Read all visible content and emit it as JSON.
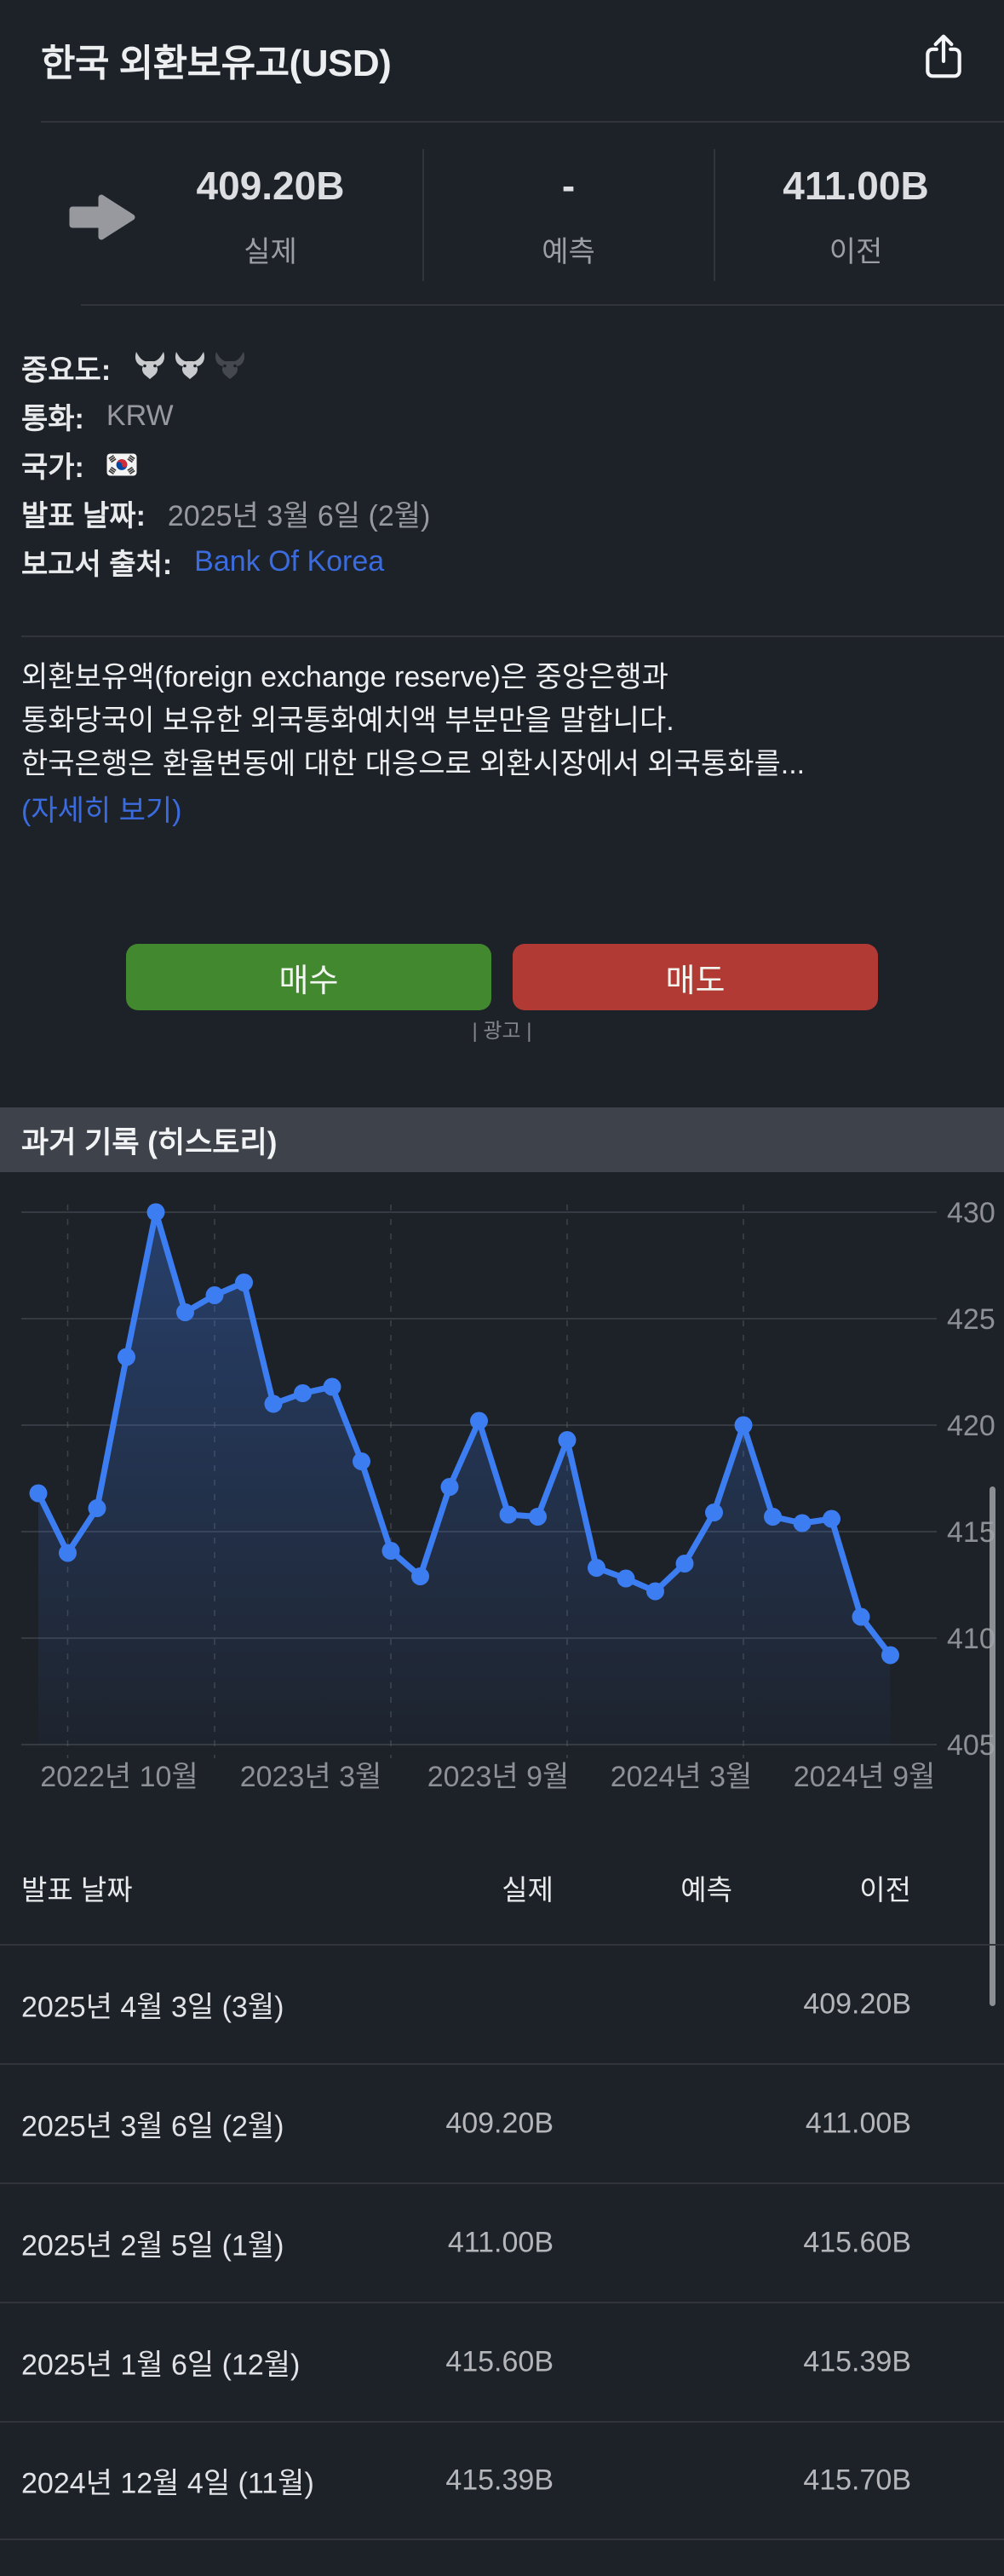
{
  "page": {
    "background": "#1d2128",
    "accent_blue": "#3c7ef2"
  },
  "header": {
    "title": "한국 외환보유고(USD)"
  },
  "stats": {
    "actual": {
      "value": "409.20B",
      "label": "실제"
    },
    "forecast": {
      "value": "-",
      "label": "예측"
    },
    "previous": {
      "value": "411.00B",
      "label": "이전"
    }
  },
  "details": {
    "importance": {
      "label": "중요도:",
      "bulls_active": 2,
      "bulls_total": 3
    },
    "currency": {
      "label": "통화:",
      "value": "KRW"
    },
    "country": {
      "label": "국가:",
      "flag": "south-korea"
    },
    "release_date": {
      "label": "발표 날짜:",
      "value": "2025년 3월 6일 (2월)"
    },
    "source": {
      "label": "보고서 출처:",
      "value": "Bank Of Korea",
      "link_color": "#3b6cdf"
    }
  },
  "description": {
    "lines": [
      "외환보유액(foreign exchange reserve)은 중앙은행과",
      "통화당국이 보유한 외국통화예치액 부분만을 말합니다.",
      "한국은행은 환율변동에 대한 대응으로 외환시장에서 외국통화를..."
    ],
    "more_link": "(자세히 보기)"
  },
  "actions": {
    "buy_label": "매수",
    "buy_color": "#41882f",
    "sell_label": "매도",
    "sell_color": "#b23a34",
    "ad_label": "| 광고 |"
  },
  "history": {
    "section_title": "과거 기록 (히스토리)"
  },
  "chart_data": {
    "type": "line",
    "title": "한국 외환보유고(USD) 과거 기록",
    "x": [
      "2022-09",
      "2022-10",
      "2022-11",
      "2022-12",
      "2023-01",
      "2023-02",
      "2023-03",
      "2023-04",
      "2023-05",
      "2023-06",
      "2023-07",
      "2023-08",
      "2023-09",
      "2023-10",
      "2023-11",
      "2023-12",
      "2024-01",
      "2024-02",
      "2024-03",
      "2024-04",
      "2024-05",
      "2024-06",
      "2024-07",
      "2024-08",
      "2024-09",
      "2024-10",
      "2024-11",
      "2024-12",
      "2025-01",
      "2025-02"
    ],
    "values": [
      416.8,
      414.0,
      416.1,
      423.2,
      430.0,
      425.3,
      426.1,
      426.7,
      421.0,
      421.5,
      421.8,
      418.3,
      414.1,
      412.9,
      417.1,
      420.2,
      415.8,
      415.7,
      419.3,
      413.3,
      412.8,
      412.2,
      413.5,
      415.9,
      420.0,
      415.7,
      415.4,
      415.6,
      411.0,
      409.2
    ],
    "ylim": [
      405,
      430
    ],
    "yticks": [
      430,
      425,
      420,
      415,
      410,
      405
    ],
    "xtick_labels": [
      "2022년 10월",
      "2023년 3월",
      "2023년 9월",
      "2024년 3월",
      "2024년 9월"
    ],
    "xtick_indices": [
      1,
      6,
      12,
      18,
      24
    ],
    "grid": true,
    "legend_position": "none",
    "line_color": "#3c7ef2",
    "xlabel": "",
    "ylabel": ""
  },
  "table": {
    "headers": {
      "date": "발표 날짜",
      "actual": "실제",
      "forecast": "예측",
      "previous": "이전"
    },
    "rows": [
      {
        "date": "2025년 4월 3일 (3월)",
        "actual": "",
        "forecast": "",
        "previous": "409.20B"
      },
      {
        "date": "2025년 3월 6일 (2월)",
        "actual": "409.20B",
        "forecast": "",
        "previous": "411.00B"
      },
      {
        "date": "2025년 2월 5일 (1월)",
        "actual": "411.00B",
        "forecast": "",
        "previous": "415.60B"
      },
      {
        "date": "2025년 1월 6일 (12월)",
        "actual": "415.60B",
        "forecast": "",
        "previous": "415.39B"
      },
      {
        "date": "2024년 12월 4일 (11월)",
        "actual": "415.39B",
        "forecast": "",
        "previous": "415.70B"
      }
    ]
  }
}
